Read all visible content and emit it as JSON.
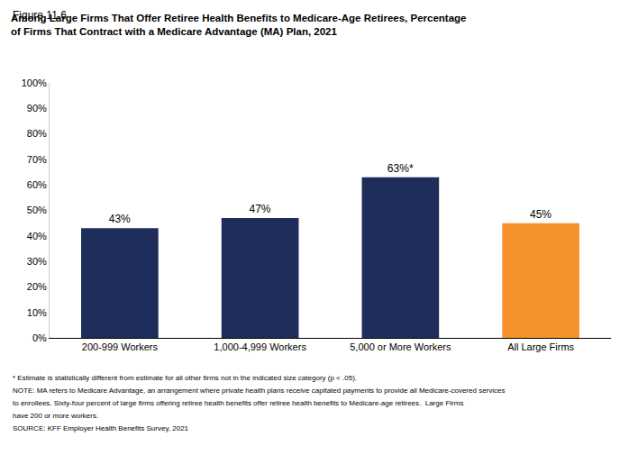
{
  "chart_data": {
    "type": "bar",
    "subtitle": "Figure 11.6",
    "title": [
      "Among Large Firms That Offer Retiree Health Benefits to Medicare-Age Retirees, Percentage",
      "of Firms That Contract with a Medicare Advantage (MA) Plan, 2021"
    ],
    "categories": [
      "200-999 Workers",
      "1,000-4,999 Workers",
      "5,000 or More Workers",
      "All Large Firms"
    ],
    "values": [
      43,
      47,
      63,
      45
    ],
    "value_labels": [
      "43%",
      "47%",
      "63%*",
      "45%"
    ],
    "data_labels": true,
    "colors": [
      "#1e2d5a",
      "#1e2d5a",
      "#1e2d5a",
      "#f5922e"
    ],
    "ylim": [
      0,
      100
    ],
    "yticks": [
      {
        "value": 0,
        "label": "0%"
      },
      {
        "value": 10,
        "label": "10%"
      },
      {
        "value": 20,
        "label": "20%"
      },
      {
        "value": 30,
        "label": "30%"
      },
      {
        "value": 40,
        "label": "40%"
      },
      {
        "value": 50,
        "label": "50%"
      },
      {
        "value": 60,
        "label": "60%"
      },
      {
        "value": 70,
        "label": "70%"
      },
      {
        "value": 80,
        "label": "80%"
      },
      {
        "value": 90,
        "label": "90%"
      },
      {
        "value": 100,
        "label": "100%"
      }
    ],
    "grid": false,
    "annotations": [
      "* Estimate is statistically different from estimate for all other firms not in the indicated size category (p < .05).",
      "NOTE: MA refers to Medicare Advantage, an arrangement where private health plans receive capitated payments to provide all Medicare-covered services",
      "to enrollees. Sixty-four percent of large firms offering retiree health benefits offer retiree health benefits to Medicare-age retirees.  Large Firms",
      "have 200 or more workers.",
      "SOURCE: KFF Employer Health Benefits Survey, 2021"
    ]
  }
}
